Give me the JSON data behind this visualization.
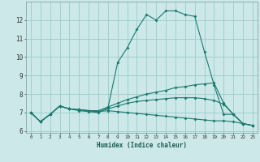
{
  "xlabel": "Humidex (Indice chaleur)",
  "bg_color": "#cce8e8",
  "grid_color": "#99cccc",
  "line_color": "#1a7a6e",
  "xlim": [
    -0.5,
    23.5
  ],
  "ylim": [
    5.9,
    13.0
  ],
  "yticks": [
    6,
    7,
    8,
    9,
    10,
    11,
    12
  ],
  "xticks": [
    0,
    1,
    2,
    3,
    4,
    5,
    6,
    7,
    8,
    9,
    10,
    11,
    12,
    13,
    14,
    15,
    16,
    17,
    18,
    19,
    20,
    21,
    22,
    23
  ],
  "line1_y": [
    7.0,
    6.5,
    6.9,
    7.35,
    7.2,
    7.1,
    7.05,
    7.0,
    7.25,
    9.7,
    10.5,
    11.5,
    12.3,
    12.0,
    12.5,
    12.5,
    12.3,
    12.2,
    10.3,
    8.5,
    6.9,
    6.9,
    6.4,
    6.3
  ],
  "line2_y": [
    7.0,
    6.5,
    6.9,
    7.35,
    7.2,
    7.15,
    7.1,
    7.1,
    7.3,
    7.5,
    7.7,
    7.85,
    8.0,
    8.1,
    8.2,
    8.35,
    8.4,
    8.5,
    8.55,
    8.6,
    7.5,
    6.9,
    6.4,
    6.3
  ],
  "line3_y": [
    7.0,
    6.5,
    6.9,
    7.35,
    7.2,
    7.15,
    7.1,
    7.05,
    7.2,
    7.35,
    7.5,
    7.6,
    7.65,
    7.7,
    7.75,
    7.8,
    7.8,
    7.8,
    7.75,
    7.65,
    7.45,
    6.9,
    6.4,
    6.3
  ],
  "line4_y": [
    7.0,
    6.5,
    6.9,
    7.35,
    7.2,
    7.15,
    7.1,
    7.05,
    7.1,
    7.05,
    7.0,
    6.95,
    6.9,
    6.85,
    6.8,
    6.75,
    6.7,
    6.65,
    6.6,
    6.55,
    6.55,
    6.5,
    6.4,
    6.3
  ]
}
